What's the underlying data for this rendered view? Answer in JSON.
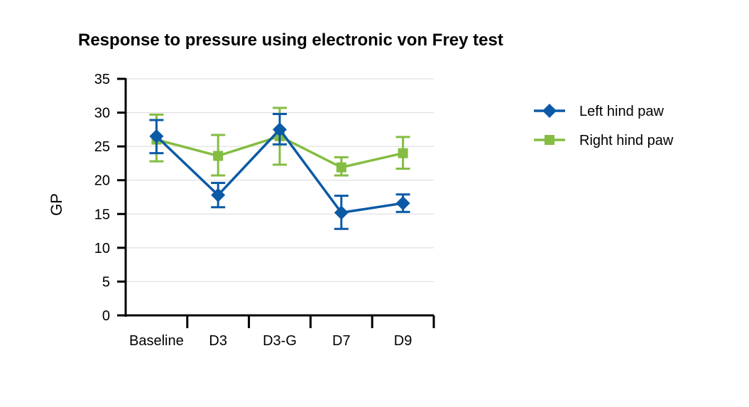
{
  "chart_data": {
    "type": "line",
    "title": "Response to pressure using electronic von Frey test",
    "xlabel": "",
    "ylabel": "GP",
    "categories": [
      "Baseline",
      "D3",
      "D3-G",
      "D7",
      "D9"
    ],
    "ylim": [
      0,
      35
    ],
    "yticks": [
      0,
      5,
      10,
      15,
      20,
      25,
      30,
      35
    ],
    "grid": true,
    "legend_position": "right",
    "series": [
      {
        "name": "Left hind paw",
        "color": "#0b5aa6",
        "marker": "diamond",
        "values": [
          26.5,
          17.8,
          27.5,
          15.2,
          16.6
        ],
        "err_low": [
          24.0,
          16.0,
          25.3,
          12.8,
          15.3
        ],
        "err_high": [
          28.9,
          19.6,
          29.8,
          17.7,
          17.9
        ]
      },
      {
        "name": "Right hind paw",
        "color": "#84bd42",
        "marker": "square",
        "values": [
          26.0,
          23.6,
          26.5,
          21.9,
          24.0
        ],
        "err_low": [
          22.8,
          20.7,
          22.3,
          20.7,
          21.7
        ],
        "err_high": [
          29.7,
          26.7,
          30.7,
          23.4,
          26.4
        ]
      }
    ]
  }
}
